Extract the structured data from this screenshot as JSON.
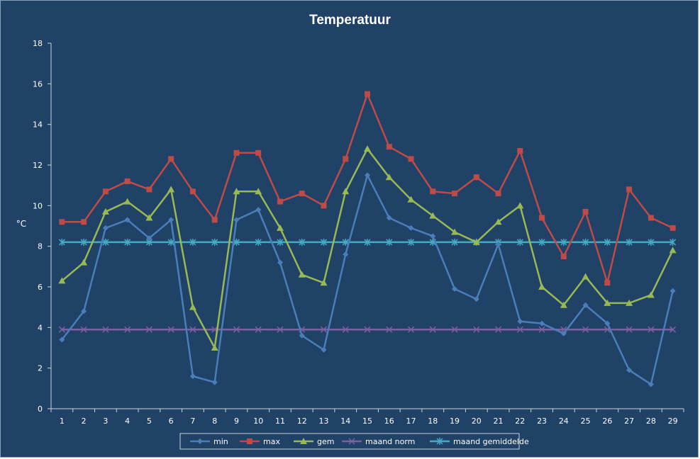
{
  "chart_data": {
    "type": "line",
    "title": "Temperatuur",
    "xlabel": "",
    "ylabel": "°C",
    "ylim": [
      0,
      18
    ],
    "yticks": [
      0,
      2,
      4,
      6,
      8,
      10,
      12,
      14,
      16,
      18
    ],
    "categories": [
      "1",
      "2",
      "3",
      "4",
      "5",
      "6",
      "7",
      "8",
      "9",
      "10",
      "11",
      "12",
      "13",
      "14",
      "15",
      "16",
      "17",
      "18",
      "19",
      "20",
      "21",
      "22",
      "23",
      "24",
      "25",
      "26",
      "27",
      "28",
      "29"
    ],
    "grid": false,
    "legend_position": "bottom",
    "series": [
      {
        "name": "min",
        "color": "#4a7ebb",
        "marker": "diamond",
        "values": [
          3.4,
          4.8,
          8.9,
          9.3,
          8.4,
          9.3,
          1.6,
          1.3,
          9.3,
          9.8,
          7.2,
          3.6,
          2.9,
          7.6,
          11.5,
          9.4,
          8.9,
          8.5,
          5.9,
          5.4,
          8.1,
          4.3,
          4.2,
          3.7,
          5.1,
          4.2,
          1.9,
          1.2,
          5.8
        ]
      },
      {
        "name": "max",
        "color": "#be4b48",
        "marker": "square",
        "values": [
          9.2,
          9.2,
          10.7,
          11.2,
          10.8,
          12.3,
          10.7,
          9.3,
          12.6,
          12.6,
          10.2,
          10.6,
          10.0,
          12.3,
          15.5,
          12.9,
          12.3,
          10.7,
          10.6,
          11.4,
          10.6,
          12.7,
          9.4,
          7.5,
          9.7,
          6.2,
          10.8,
          9.4,
          8.9
        ]
      },
      {
        "name": "gem",
        "color": "#98b954",
        "marker": "triangle",
        "values": [
          6.3,
          7.2,
          9.7,
          10.2,
          9.4,
          10.8,
          5.0,
          3.0,
          10.7,
          10.7,
          8.9,
          6.6,
          6.2,
          10.7,
          12.8,
          11.4,
          10.3,
          9.5,
          8.7,
          8.2,
          9.2,
          10.0,
          6.0,
          5.1,
          6.5,
          5.2,
          5.2,
          5.6,
          7.8
        ]
      },
      {
        "name": "maand norm",
        "color": "#7d60a0",
        "marker": "x",
        "values": [
          3.9,
          3.9,
          3.9,
          3.9,
          3.9,
          3.9,
          3.9,
          3.9,
          3.9,
          3.9,
          3.9,
          3.9,
          3.9,
          3.9,
          3.9,
          3.9,
          3.9,
          3.9,
          3.9,
          3.9,
          3.9,
          3.9,
          3.9,
          3.9,
          3.9,
          3.9,
          3.9,
          3.9,
          3.9
        ]
      },
      {
        "name": "maand gemiddelde",
        "color": "#46aac5",
        "marker": "star",
        "values": [
          8.2,
          8.2,
          8.2,
          8.2,
          8.2,
          8.2,
          8.2,
          8.2,
          8.2,
          8.2,
          8.2,
          8.2,
          8.2,
          8.2,
          8.2,
          8.2,
          8.2,
          8.2,
          8.2,
          8.2,
          8.2,
          8.2,
          8.2,
          8.2,
          8.2,
          8.2,
          8.2,
          8.2,
          8.2
        ]
      }
    ]
  }
}
